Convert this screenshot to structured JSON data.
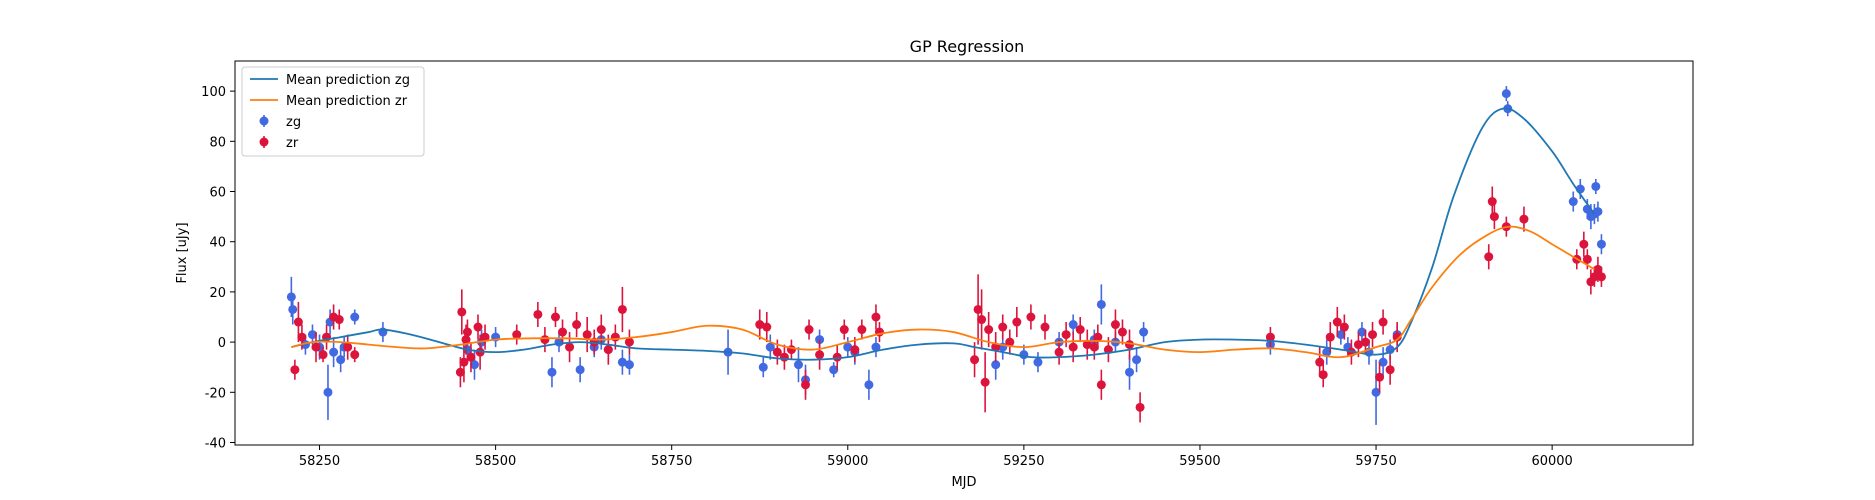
{
  "chart_data": {
    "type": "scatter",
    "title": "GP Regression",
    "xlabel": "MJD",
    "ylabel": "Flux [uJy]",
    "xlim": [
      58130,
      60200
    ],
    "ylim": [
      -41,
      112
    ],
    "xticks": [
      58250,
      58500,
      58750,
      59000,
      59250,
      59500,
      59750,
      60000
    ],
    "yticks": [
      -40,
      -20,
      0,
      20,
      40,
      60,
      80,
      100
    ],
    "grid": false,
    "legend_location": "upper-left",
    "legend": [
      {
        "label": "Mean prediction zg",
        "kind": "line",
        "color": "#1f77b4"
      },
      {
        "label": "Mean prediction zr",
        "kind": "line",
        "color": "#ff7f0e"
      },
      {
        "label": "zg",
        "kind": "errorbar",
        "color": "#4169e1"
      },
      {
        "label": "zr",
        "kind": "errorbar",
        "color": "#dc143c"
      }
    ],
    "lines": [
      {
        "name": "Mean prediction zg",
        "color": "#1f77b4",
        "x": [
          58210,
          58240,
          58280,
          58320,
          58340,
          58380,
          58420,
          58460,
          58500,
          58540,
          58580,
          58620,
          58660,
          58700,
          58750,
          58800,
          58850,
          58900,
          58950,
          59000,
          59050,
          59100,
          59150,
          59180,
          59220,
          59260,
          59300,
          59350,
          59400,
          59450,
          59500,
          59550,
          59600,
          59650,
          59700,
          59750,
          59780,
          59800,
          59830,
          59860,
          59900,
          59930,
          59960,
          60000,
          60030,
          60060
        ],
        "y": [
          -2,
          0,
          2,
          4,
          5,
          3,
          0,
          -3,
          -4,
          -3,
          -1,
          0,
          -1,
          -2.5,
          -3,
          -3.5,
          -4.5,
          -6.5,
          -7,
          -6,
          -3,
          -1,
          -0.5,
          -2,
          -4,
          -6,
          -6,
          -5,
          -3,
          0,
          1,
          1,
          0.5,
          -1,
          -3,
          -5,
          -2,
          8,
          30,
          58,
          85,
          93,
          89,
          76,
          63,
          51
        ]
      },
      {
        "name": "Mean prediction zr",
        "color": "#ff7f0e",
        "x": [
          58210,
          58240,
          58280,
          58320,
          58360,
          58400,
          58450,
          58500,
          58550,
          58600,
          58650,
          58700,
          58750,
          58800,
          58850,
          58900,
          58950,
          59000,
          59050,
          59100,
          59150,
          59200,
          59250,
          59300,
          59350,
          59400,
          59450,
          59500,
          59550,
          59600,
          59650,
          59700,
          59750,
          59780,
          59800,
          59830,
          59870,
          59910,
          59940,
          59970,
          60000,
          60030,
          60060
        ],
        "y": [
          -2,
          0,
          0,
          -1,
          -2,
          -2.5,
          -1,
          1,
          1.5,
          1.5,
          1,
          2,
          4,
          6.5,
          5,
          -1,
          -3,
          0,
          3.5,
          5,
          4,
          0,
          -2,
          0,
          0.5,
          -0.5,
          -3,
          -4,
          -3,
          -2.5,
          -4,
          -6,
          -2,
          1,
          9,
          22,
          35,
          43,
          46,
          44,
          39,
          34,
          29
        ]
      }
    ],
    "series": [
      {
        "name": "zg",
        "color": "#4169e1",
        "x": [
          58210,
          58212,
          58230,
          58240,
          58250,
          58262,
          58265,
          58270,
          58280,
          58285,
          58300,
          58340,
          58460,
          58470,
          58480,
          58500,
          58580,
          58590,
          58620,
          58640,
          58650,
          58660,
          58680,
          58690,
          58830,
          58880,
          58890,
          58930,
          58940,
          58960,
          58980,
          59000,
          59010,
          59030,
          59040,
          59210,
          59220,
          59250,
          59270,
          59300,
          59320,
          59350,
          59360,
          59380,
          59400,
          59410,
          59420,
          59600,
          59680,
          59700,
          59710,
          59730,
          59740,
          59750,
          59760,
          59770,
          59780,
          59935,
          59937,
          60030,
          60040,
          60050,
          60055,
          60060,
          60062,
          60065,
          60070
        ],
        "y": [
          18,
          13,
          -1,
          3,
          -2,
          -20,
          8,
          -4,
          -7,
          -2,
          10,
          4,
          -3,
          -9,
          0,
          2,
          -12,
          0,
          -11,
          -2,
          1,
          -3,
          -8,
          -9,
          -4,
          -10,
          -2,
          -9,
          -15,
          1,
          -11,
          -2,
          -4,
          -17,
          -2,
          -9,
          -2,
          -5,
          -8,
          0,
          7,
          1,
          15,
          0,
          -12,
          -7,
          4,
          -1,
          -4,
          3,
          -2,
          4,
          -4,
          -20,
          -8,
          -3,
          3,
          99,
          93,
          56,
          61,
          53,
          50,
          51,
          62,
          52,
          39
        ],
        "err": [
          8,
          6,
          4,
          4,
          5,
          11,
          5,
          6,
          5,
          4,
          3,
          4,
          5,
          6,
          5,
          4,
          6,
          4,
          5,
          4,
          4,
          5,
          5,
          4,
          9,
          4,
          5,
          7,
          6,
          4,
          3,
          4,
          5,
          6,
          4,
          6,
          5,
          4,
          4,
          4,
          4,
          4,
          8,
          4,
          7,
          5,
          4,
          4,
          5,
          4,
          4,
          4,
          5,
          13,
          6,
          4,
          4,
          3,
          3,
          4,
          4,
          4,
          5,
          4,
          3,
          4,
          4
        ]
      },
      {
        "name": "zr",
        "color": "#dc143c",
        "x": [
          58215,
          58220,
          58225,
          58245,
          58255,
          58260,
          58270,
          58278,
          58290,
          58300,
          58450,
          58452,
          58455,
          58458,
          58460,
          58465,
          58475,
          58478,
          58485,
          58530,
          58560,
          58570,
          58585,
          58595,
          58605,
          58615,
          58630,
          58640,
          58650,
          58660,
          58670,
          58680,
          58690,
          58875,
          58885,
          58900,
          58910,
          58920,
          58940,
          58945,
          58960,
          58985,
          58995,
          59010,
          59020,
          59040,
          59045,
          59180,
          59185,
          59190,
          59195,
          59200,
          59210,
          59220,
          59230,
          59240,
          59260,
          59280,
          59300,
          59310,
          59320,
          59330,
          59340,
          59350,
          59355,
          59360,
          59370,
          59380,
          59390,
          59400,
          59415,
          59600,
          59670,
          59675,
          59685,
          59695,
          59705,
          59715,
          59725,
          59735,
          59745,
          59755,
          59760,
          59770,
          59780,
          59910,
          59915,
          59918,
          59935,
          59960,
          60035,
          60045,
          60050,
          60055,
          60060,
          60065,
          60070
        ],
        "y": [
          -11,
          8,
          2,
          -2,
          -5,
          2,
          10,
          9,
          -2,
          -5,
          -12,
          12,
          -8,
          1,
          4,
          -6,
          6,
          -4,
          2,
          3,
          11,
          1,
          10,
          4,
          -2,
          7,
          3,
          0,
          5,
          -3,
          2,
          13,
          0,
          7,
          6,
          -4,
          -6,
          -3,
          -17,
          5,
          -5,
          -6,
          5,
          -3,
          5,
          10,
          4,
          -7,
          13,
          9,
          -16,
          5,
          -2,
          6,
          0,
          8,
          10,
          6,
          -4,
          3,
          -2,
          5,
          -1,
          -2,
          2,
          -17,
          -3,
          7,
          4,
          -1,
          -26,
          2,
          -8,
          -13,
          2,
          8,
          6,
          -4,
          -1,
          0,
          3,
          -14,
          8,
          -11,
          2,
          34,
          56,
          50,
          46,
          49,
          33,
          39,
          33,
          24,
          26,
          29,
          26
        ],
        "err": [
          4,
          8,
          5,
          6,
          3,
          5,
          5,
          4,
          5,
          3,
          6,
          9,
          8,
          6,
          5,
          6,
          5,
          7,
          5,
          4,
          5,
          5,
          4,
          5,
          6,
          5,
          7,
          5,
          6,
          6,
          5,
          9,
          5,
          6,
          6,
          5,
          5,
          4,
          6,
          4,
          6,
          5,
          4,
          5,
          4,
          5,
          4,
          7,
          14,
          12,
          12,
          7,
          6,
          5,
          5,
          6,
          5,
          5,
          5,
          5,
          6,
          5,
          6,
          5,
          5,
          6,
          5,
          6,
          5,
          6,
          6,
          4,
          6,
          5,
          6,
          6,
          5,
          5,
          5,
          5,
          5,
          6,
          5,
          6,
          6,
          5,
          6,
          5,
          4,
          5,
          4,
          5,
          4,
          5,
          4,
          5,
          4
        ]
      }
    ]
  }
}
